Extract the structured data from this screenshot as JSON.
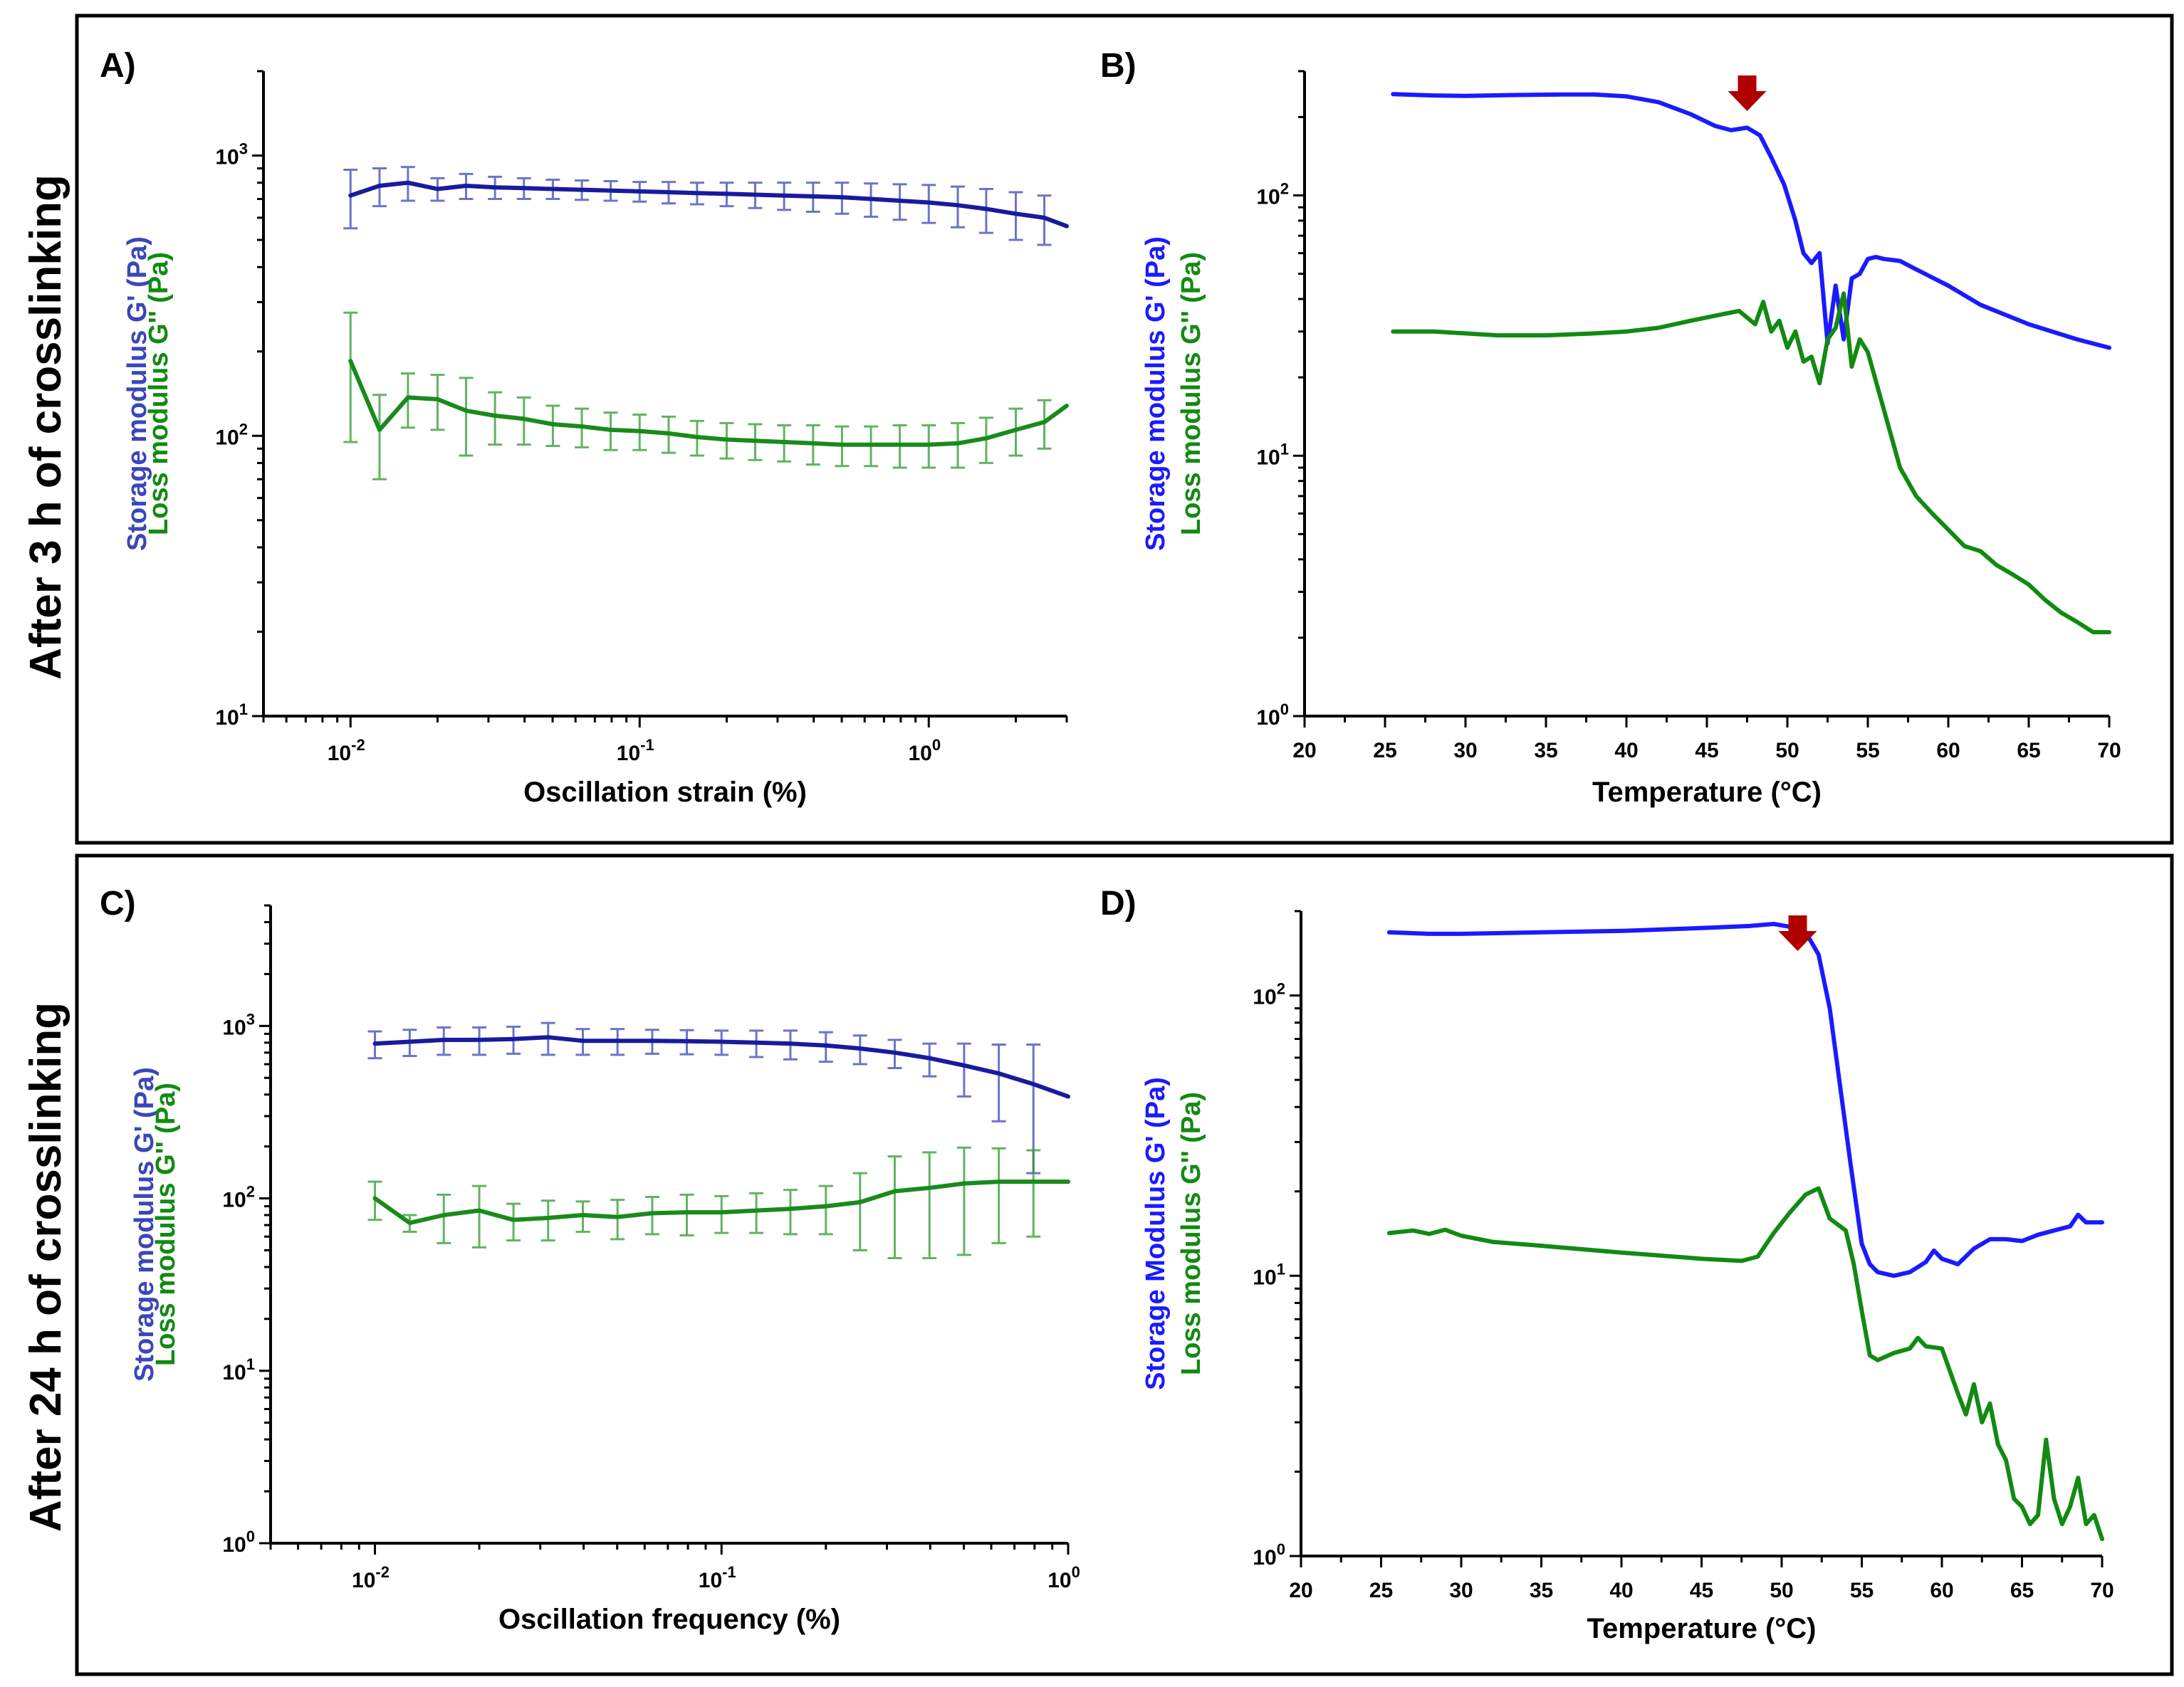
{
  "figure": {
    "row_titles": [
      "After 3 h of crosslinking",
      "After 24 h of crosslinking"
    ]
  },
  "colors": {
    "storage_errorbar": "#3b46b8",
    "loss_errorbar": "#2e9a2e",
    "storage_temp": "#1a1aff",
    "loss_temp": "#128a12",
    "arrow": "#b00000",
    "storage_sweep": "#1a1a9e",
    "loss_sweep": "#1a8a1a"
  },
  "chart_data": [
    {
      "panel": "A)",
      "type": "line",
      "xscale": "log",
      "yscale": "log",
      "xlim": [
        0.005,
        3
      ],
      "ylim": [
        10,
        2000
      ],
      "xlabel": "Oscillation strain (%)",
      "ylabel_storage": "Storage modulus G' (Pa)",
      "ylabel_loss": "Loss modulus G'' (Pa)",
      "xticks": [
        {
          "value": 0.01,
          "exp": "-2"
        },
        {
          "value": 0.1,
          "exp": "-1"
        },
        {
          "value": 1,
          "exp": "0"
        }
      ],
      "yticks": [
        {
          "value": 10,
          "exp": "1"
        },
        {
          "value": 100,
          "exp": "2"
        },
        {
          "value": 1000,
          "exp": "3"
        }
      ],
      "x": [
        0.01,
        0.0126,
        0.0158,
        0.02,
        0.0251,
        0.0316,
        0.0398,
        0.0501,
        0.0631,
        0.0794,
        0.1,
        0.126,
        0.158,
        0.2,
        0.251,
        0.316,
        0.398,
        0.501,
        0.631,
        0.794,
        1.0,
        1.26,
        1.58,
        2.0,
        2.51,
        3.0
      ],
      "series": [
        {
          "name": "Storage modulus G'",
          "color_key": "storage_sweep",
          "errorbars": true,
          "values": [
            720,
            780,
            800,
            760,
            780,
            770,
            765,
            760,
            755,
            750,
            745,
            740,
            735,
            730,
            725,
            720,
            715,
            710,
            700,
            690,
            680,
            665,
            645,
            620,
            600,
            560
          ],
          "errors": [
            170,
            120,
            110,
            70,
            80,
            70,
            65,
            60,
            60,
            60,
            60,
            65,
            65,
            70,
            75,
            80,
            85,
            90,
            95,
            100,
            105,
            110,
            115,
            120,
            120,
            0
          ]
        },
        {
          "name": "Loss modulus G''",
          "color_key": "loss_sweep",
          "errorbars": true,
          "values": [
            185,
            105,
            137,
            135,
            123,
            118,
            115,
            110,
            108,
            105,
            104,
            102,
            99,
            97,
            96,
            95,
            94,
            93,
            93,
            93,
            93,
            94,
            98,
            105,
            112,
            128
          ],
          "errors": [
            90,
            35,
            30,
            30,
            38,
            25,
            22,
            18,
            17,
            16,
            15,
            15,
            14,
            14,
            14,
            14,
            15,
            15,
            15,
            16,
            16,
            17,
            18,
            20,
            22,
            0
          ]
        }
      ]
    },
    {
      "panel": "B)",
      "type": "line",
      "xscale": "linear",
      "yscale": "log",
      "xlim": [
        20,
        70
      ],
      "ylim": [
        1,
        300
      ],
      "xlabel": "Temperature (°C)",
      "ylabel_storage": "Storage modulus G' (Pa)",
      "ylabel_loss": "Loss modulus G'' (Pa)",
      "xticks": [
        {
          "value": 20,
          "label": "20"
        },
        {
          "value": 25,
          "label": "25"
        },
        {
          "value": 30,
          "label": "30"
        },
        {
          "value": 35,
          "label": "35"
        },
        {
          "value": 40,
          "label": "40"
        },
        {
          "value": 45,
          "label": "45"
        },
        {
          "value": 50,
          "label": "50"
        },
        {
          "value": 55,
          "label": "55"
        },
        {
          "value": 60,
          "label": "60"
        },
        {
          "value": 65,
          "label": "65"
        },
        {
          "value": 70,
          "label": "70"
        }
      ],
      "yticks": [
        {
          "value": 1,
          "exp": "0"
        },
        {
          "value": 10,
          "exp": "1"
        },
        {
          "value": 100,
          "exp": "2"
        }
      ],
      "arrow_x": 47.5,
      "series": [
        {
          "name": "Storage modulus G'",
          "color_key": "storage_temp",
          "errorbars": false,
          "x": [
            25.5,
            28,
            30,
            33,
            36,
            38,
            40,
            42,
            44,
            45.5,
            46.5,
            47.5,
            48.3,
            49,
            49.8,
            50.5,
            51,
            51.5,
            52,
            52.5,
            53,
            53.5,
            54,
            54.5,
            55,
            55.5,
            56,
            57,
            58,
            60,
            62,
            65,
            68,
            70
          ],
          "y": [
            245,
            242,
            241,
            243,
            244,
            244,
            240,
            228,
            205,
            185,
            178,
            182,
            170,
            140,
            110,
            80,
            60,
            55,
            60,
            27,
            45,
            28,
            48,
            50,
            57,
            58,
            57,
            56,
            52,
            45,
            38,
            32,
            28,
            26
          ]
        },
        {
          "name": "Loss modulus G''",
          "color_key": "loss_temp",
          "errorbars": false,
          "x": [
            25.5,
            28,
            30,
            32,
            35,
            38,
            40,
            42,
            44,
            46,
            47,
            48,
            48.5,
            49,
            49.5,
            50,
            50.5,
            51,
            51.5,
            52,
            52.5,
            53,
            53.5,
            54,
            54.5,
            55,
            56,
            57,
            58,
            59,
            60,
            61,
            62,
            63,
            64,
            65,
            66,
            67,
            68,
            69,
            70
          ],
          "y": [
            30,
            30,
            29.5,
            29,
            29,
            29.5,
            30,
            31,
            33,
            35,
            36,
            32,
            39,
            30,
            33,
            26,
            30,
            23,
            24,
            19,
            28,
            31,
            42,
            22,
            28,
            25,
            15,
            9,
            7,
            6,
            5.2,
            4.5,
            4.3,
            3.8,
            3.5,
            3.2,
            2.8,
            2.5,
            2.3,
            2.1,
            2.1
          ]
        }
      ]
    },
    {
      "panel": "C)",
      "type": "line",
      "xscale": "log",
      "yscale": "log",
      "xlim": [
        0.005,
        1
      ],
      "ylim": [
        1,
        5000
      ],
      "xlabel": "Oscillation frequency (%)",
      "ylabel_storage": "Storage modulus G' (Pa)",
      "ylabel_loss": "Loss modulus G'' (Pa)",
      "xticks": [
        {
          "value": 0.01,
          "exp": "-2"
        },
        {
          "value": 0.1,
          "exp": "-1"
        },
        {
          "value": 1,
          "exp": "0"
        }
      ],
      "yticks": [
        {
          "value": 1,
          "exp": "0"
        },
        {
          "value": 10,
          "exp": "1"
        },
        {
          "value": 100,
          "exp": "2"
        },
        {
          "value": 1000,
          "exp": "3"
        }
      ],
      "x": [
        0.01,
        0.0126,
        0.0158,
        0.02,
        0.0251,
        0.0316,
        0.0398,
        0.0501,
        0.0631,
        0.0794,
        0.1,
        0.126,
        0.158,
        0.2,
        0.251,
        0.316,
        0.398,
        0.501,
        0.631,
        0.794,
        1.0
      ],
      "series": [
        {
          "name": "Storage modulus G'",
          "color_key": "storage_sweep",
          "errorbars": true,
          "values": [
            790,
            810,
            830,
            830,
            840,
            860,
            820,
            820,
            820,
            815,
            810,
            800,
            790,
            770,
            740,
            700,
            650,
            590,
            530,
            460,
            390
          ],
          "errors": [
            140,
            140,
            150,
            150,
            150,
            180,
            140,
            140,
            130,
            130,
            130,
            140,
            150,
            150,
            140,
            130,
            140,
            200,
            250,
            320,
            0
          ]
        },
        {
          "name": "Loss modulus G''",
          "color_key": "loss_sweep",
          "errorbars": true,
          "values": [
            100,
            72,
            80,
            85,
            75,
            77,
            80,
            78,
            82,
            83,
            83,
            85,
            87,
            90,
            95,
            110,
            115,
            122,
            125,
            125,
            125
          ],
          "errors": [
            25,
            8,
            25,
            33,
            18,
            20,
            16,
            20,
            20,
            22,
            20,
            22,
            25,
            28,
            45,
            65,
            70,
            75,
            70,
            65,
            0
          ]
        }
      ]
    },
    {
      "panel": "D)",
      "type": "line",
      "xscale": "linear",
      "yscale": "log",
      "xlim": [
        20,
        70
      ],
      "ylim": [
        1,
        200
      ],
      "xlabel": "Temperature (°C)",
      "ylabel_storage": "Storage Modulus G' (Pa)",
      "ylabel_loss": "Loss modulus G'' (Pa)",
      "xticks": [
        {
          "value": 20,
          "label": "20"
        },
        {
          "value": 25,
          "label": "25"
        },
        {
          "value": 30,
          "label": "30"
        },
        {
          "value": 35,
          "label": "35"
        },
        {
          "value": 40,
          "label": "40"
        },
        {
          "value": 45,
          "label": "45"
        },
        {
          "value": 50,
          "label": "50"
        },
        {
          "value": 55,
          "label": "55"
        },
        {
          "value": 60,
          "label": "60"
        },
        {
          "value": 65,
          "label": "65"
        },
        {
          "value": 70,
          "label": "70"
        }
      ],
      "yticks": [
        {
          "value": 1,
          "exp": "0"
        },
        {
          "value": 10,
          "exp": "1"
        },
        {
          "value": 100,
          "exp": "2"
        }
      ],
      "arrow_x": 51,
      "series": [
        {
          "name": "Storage Modulus G'",
          "color_key": "storage_temp",
          "errorbars": false,
          "x": [
            25.5,
            28,
            30,
            35,
            40,
            45,
            48,
            49.5,
            50.5,
            51.5,
            52.3,
            53,
            53.7,
            54.3,
            55,
            55.5,
            56,
            57,
            58,
            59,
            59.5,
            60,
            61,
            62,
            63,
            64,
            65,
            66,
            67,
            68,
            68.5,
            69,
            70
          ],
          "y": [
            168,
            166,
            166,
            168,
            170,
            174,
            177,
            180,
            176,
            168,
            140,
            90,
            45,
            25,
            13,
            11,
            10.3,
            10,
            10.3,
            11.2,
            12.3,
            11.5,
            11,
            12.5,
            13.5,
            13.5,
            13.3,
            14,
            14.5,
            15,
            16.5,
            15.5,
            15.5
          ]
        },
        {
          "name": "Loss modulus G''",
          "color_key": "loss_temp",
          "errorbars": false,
          "x": [
            25.5,
            27,
            28,
            29,
            30,
            32,
            35,
            40,
            45,
            47.5,
            48.5,
            49.5,
            50.5,
            51.5,
            52.3,
            53,
            54,
            54.5,
            55,
            55.5,
            56,
            57,
            58,
            58.5,
            59,
            60,
            61,
            61.5,
            62,
            62.5,
            63,
            63.5,
            64,
            64.5,
            65,
            65.5,
            66,
            66.5,
            67,
            67.5,
            68,
            68.5,
            69,
            69.5,
            70
          ],
          "y": [
            14.2,
            14.5,
            14.1,
            14.6,
            13.9,
            13.2,
            12.8,
            12.1,
            11.5,
            11.3,
            11.7,
            14.2,
            16.8,
            19.5,
            20.5,
            16,
            14.5,
            11,
            7.5,
            5.2,
            5,
            5.3,
            5.5,
            6,
            5.6,
            5.5,
            3.8,
            3.2,
            4.1,
            3,
            3.5,
            2.5,
            2.2,
            1.6,
            1.5,
            1.3,
            1.4,
            2.6,
            1.6,
            1.3,
            1.5,
            1.9,
            1.3,
            1.4,
            1.15
          ]
        }
      ]
    }
  ]
}
